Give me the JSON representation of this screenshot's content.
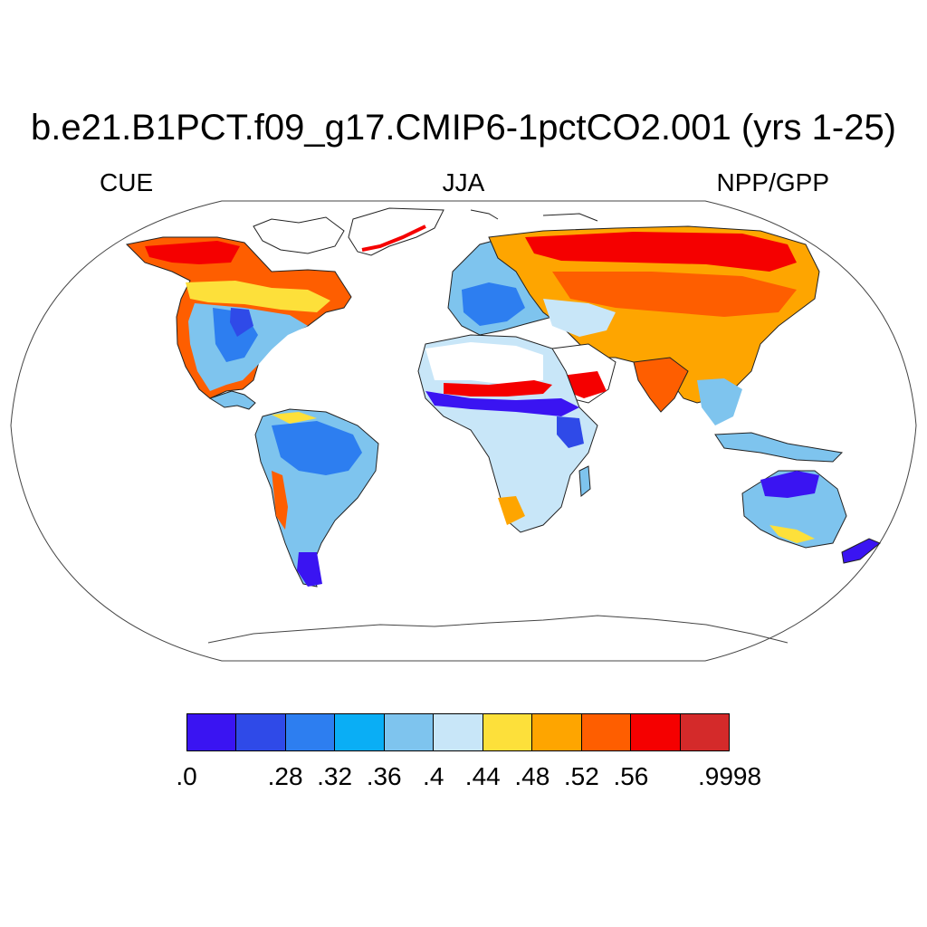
{
  "title": "b.e21.B1PCT.f09_g17.CMIP6-1pctCO2.001 (yrs 1-25)",
  "subtitle_left": "CUE",
  "subtitle_center": "JJA",
  "subtitle_right": "NPP/GPP",
  "colorbar": {
    "colors": [
      "#3a14f2",
      "#2f4ae8",
      "#2d7ef0",
      "#0aaef5",
      "#7ec4ee",
      "#c8e6f8",
      "#fde03a",
      "#fea500",
      "#fe5e00",
      "#f50000",
      "#d42a2a"
    ],
    "labels": [
      ".0",
      ".28",
      ".32",
      ".36",
      ".4",
      ".44",
      ".48",
      ".52",
      ".56",
      ".9998"
    ]
  }
}
